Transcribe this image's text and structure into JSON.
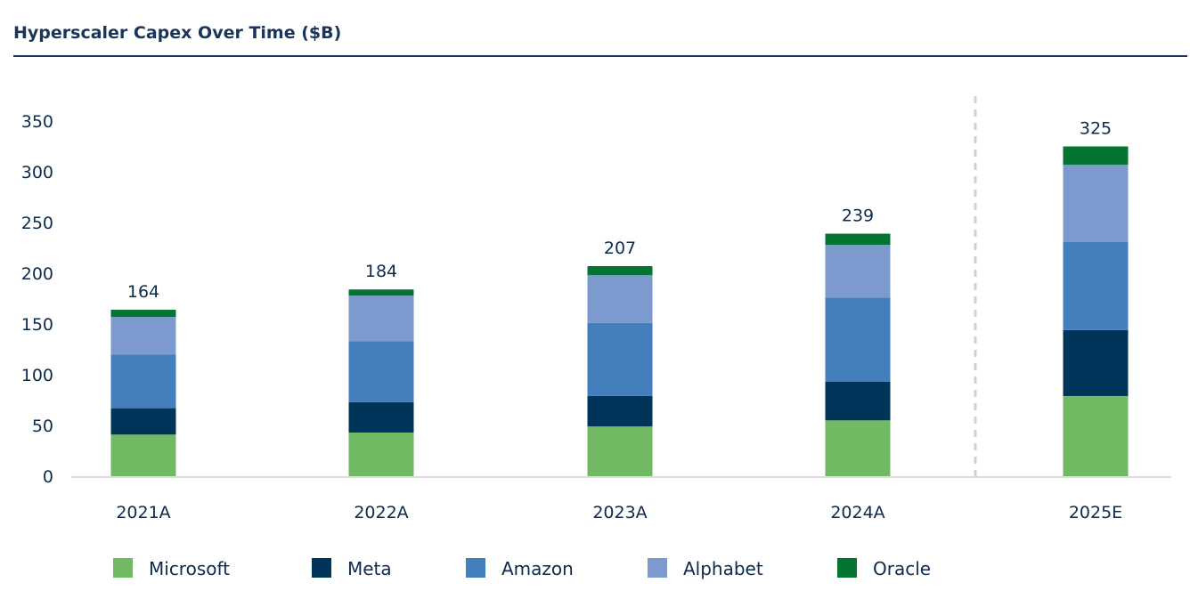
{
  "chart_data": {
    "type": "bar",
    "stacked": true,
    "title": "Hyperscaler Capex Over Time ($B)",
    "xlabel": "",
    "ylabel": "",
    "ylim": [
      0,
      350
    ],
    "yticks": [
      0,
      50,
      100,
      150,
      200,
      250,
      300,
      350
    ],
    "categories": [
      "2021A",
      "2022A",
      "2023A",
      "2024A",
      "2025E"
    ],
    "totals": [
      "164",
      "184",
      "207",
      "239",
      "325"
    ],
    "series": [
      {
        "name": "Microsoft",
        "color": "#72b963",
        "values": [
          41,
          43,
          49,
          55,
          79
        ]
      },
      {
        "name": "Meta",
        "color": "#003459",
        "values": [
          26,
          30,
          30,
          38,
          65
        ]
      },
      {
        "name": "Amazon",
        "color": "#437ebd",
        "values": [
          53,
          60,
          72,
          83,
          87
        ]
      },
      {
        "name": "Alphabet",
        "color": "#7c9acd",
        "values": [
          37,
          45,
          47,
          52,
          76
        ]
      },
      {
        "name": "Oracle",
        "color": "#037432",
        "values": [
          7,
          6,
          9,
          11,
          18
        ]
      }
    ],
    "legend_position": "bottom",
    "grid": false,
    "separator_before": "2025E"
  }
}
